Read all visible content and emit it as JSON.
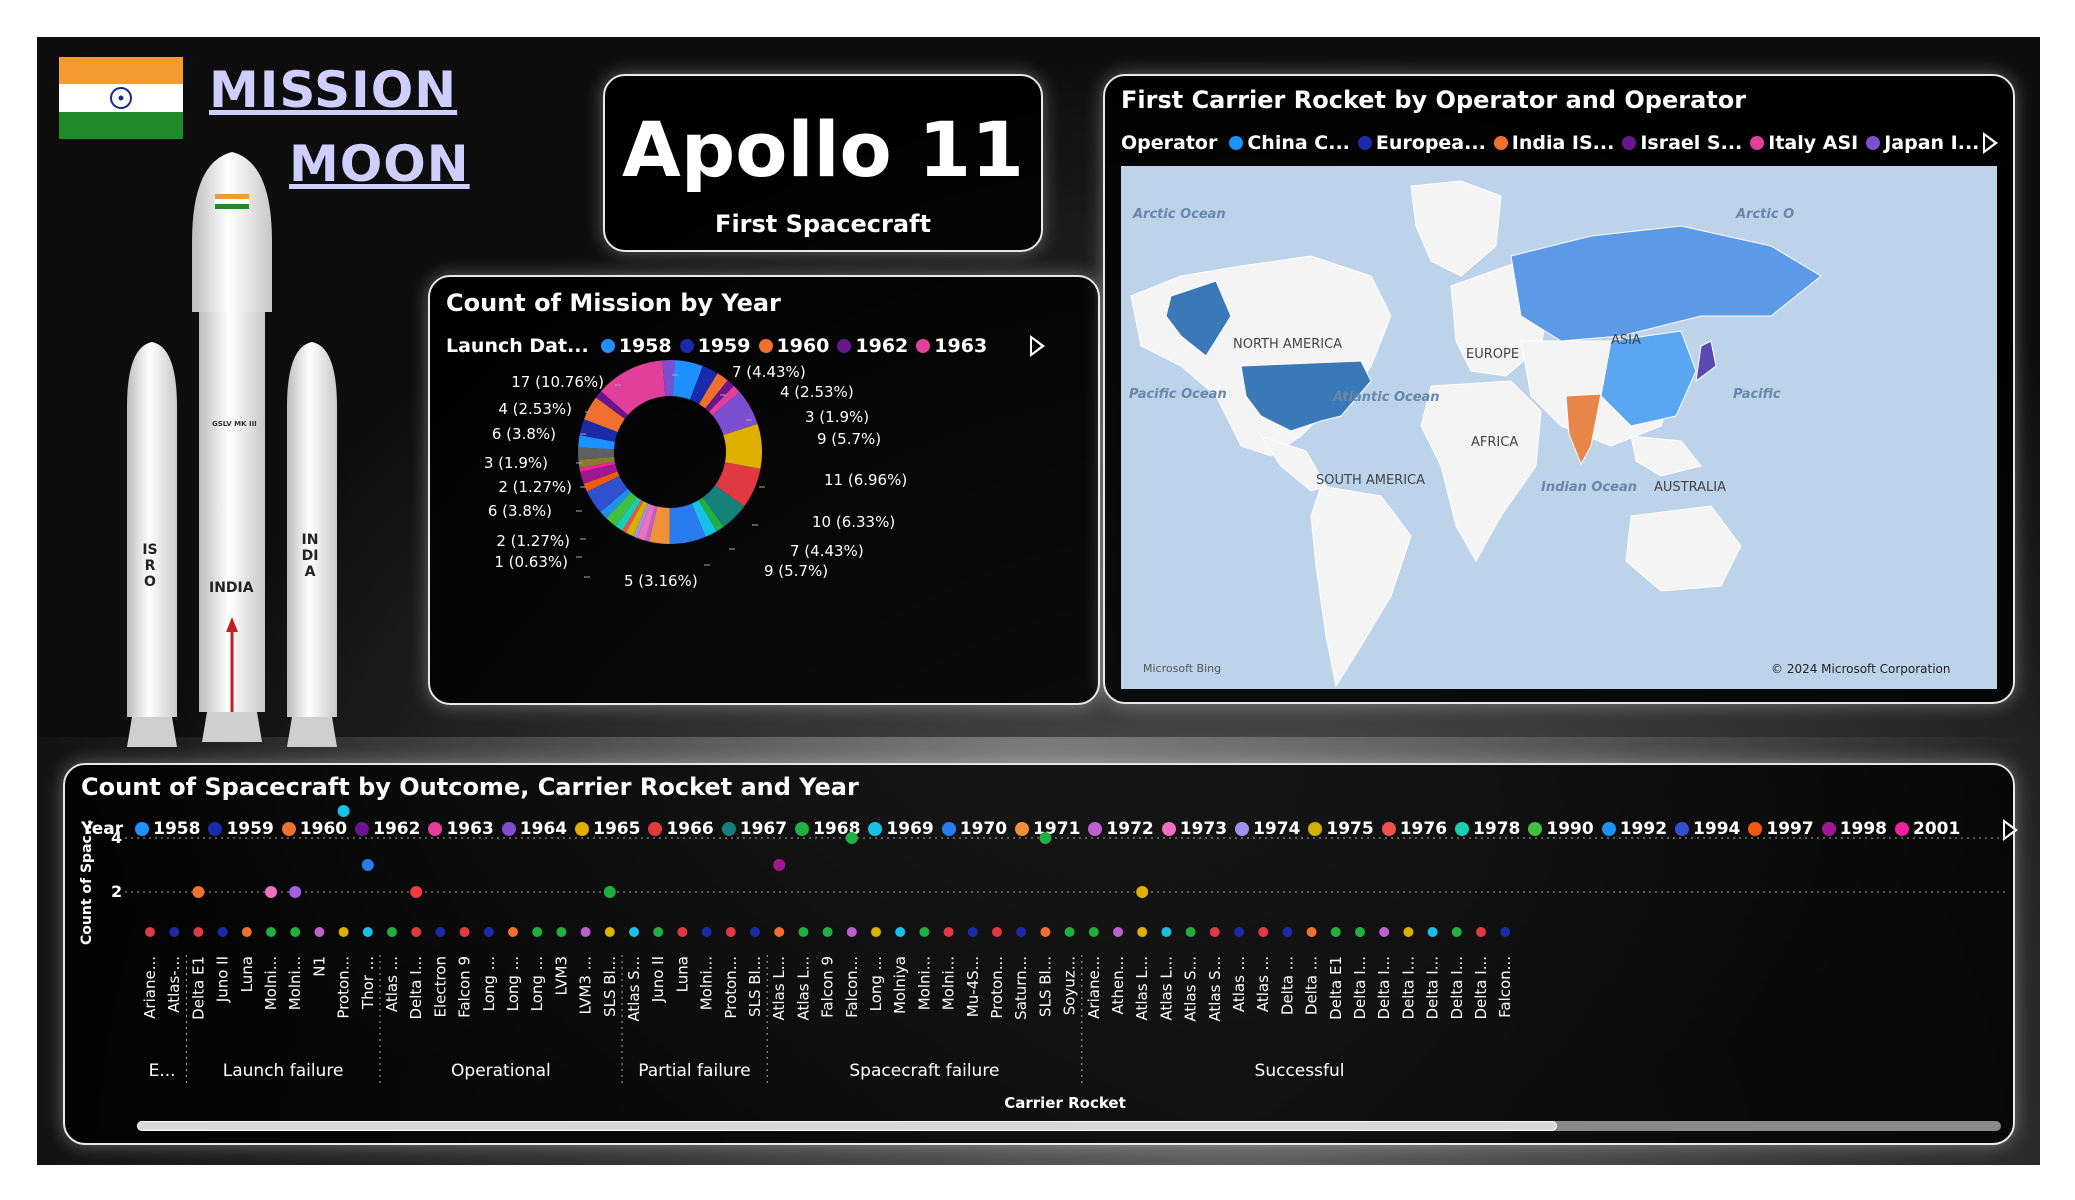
{
  "header": {
    "title_line1": "MISSION",
    "title_line2": "MOON"
  },
  "rocket": {
    "body_text": "INDIA",
    "booster_left": "ISRO",
    "booster_right": "INDIA",
    "band": "GSLV MK III"
  },
  "apollo_card": {
    "title": "Apollo 11",
    "subtitle": "First Spacecraft"
  },
  "donut_card": {
    "title": "Count of Mission by Year",
    "legend_title": "Launch Dat...",
    "legend": [
      {
        "label": "1958",
        "color": "#1e90ff"
      },
      {
        "label": "1959",
        "color": "#1a2aa8"
      },
      {
        "label": "1960",
        "color": "#f07030"
      },
      {
        "label": "1962",
        "color": "#6a1590"
      },
      {
        "label": "1963",
        "color": "#e0409a"
      }
    ],
    "labels": [
      "7 (4.43%)",
      "4 (2.53%)",
      "3 (1.9%)",
      "9 (5.7%)",
      "11 (6.96%)",
      "10 (6.33%)",
      "7 (4.43%)",
      "9 (5.7%)",
      "5 (3.16%)",
      "1 (0.63%)",
      "2 (1.27%)",
      "6 (3.8%)",
      "2 (1.27%)",
      "3 (1.9%)",
      "6 (3.8%)",
      "4 (2.53%)",
      "17 (10.76%)"
    ]
  },
  "map_card": {
    "title": "First Carrier Rocket by Operator and Operator",
    "legend_title": "Operator",
    "legend": [
      {
        "label": "China C...",
        "color": "#1e90ff"
      },
      {
        "label": "Europea...",
        "color": "#1a2aa8"
      },
      {
        "label": "India IS...",
        "color": "#f07030"
      },
      {
        "label": "Israel S...",
        "color": "#6a1590"
      },
      {
        "label": "Italy ASI",
        "color": "#e0409a"
      },
      {
        "label": "Japan I...",
        "color": "#7b4fd0"
      }
    ],
    "labels": {
      "arctic_left": "Arctic Ocean",
      "arctic_right": "Arctic O",
      "north_america": "NORTH AMERICA",
      "europe": "EUROPE",
      "asia": "ASIA",
      "pacific_left": "Pacific Ocean",
      "atlantic": "Atlantic Ocean",
      "pacific_right": "Pacific",
      "africa": "AFRICA",
      "south_america": "SOUTH AMERICA",
      "indian": "Indian Ocean",
      "australia": "AUSTRALIA",
      "bing": "Microsoft Bing",
      "copyright": "© 2024 Microsoft Corporation"
    },
    "colors": {
      "water": "#bcd3ea",
      "land": "#f4f4f4",
      "usa": "#3a78b8",
      "russia": "#5c9ae8",
      "china": "#5aa6f0",
      "india": "#e8864a",
      "japan": "#5a4ab0"
    }
  },
  "bottom_card": {
    "title": "Count of Spacecraft by Outcome, Carrier Rocket and Year",
    "legend_title": "Year",
    "legend": [
      {
        "label": "1958",
        "color": "#1e90ff"
      },
      {
        "label": "1959",
        "color": "#1a2aa8"
      },
      {
        "label": "1960",
        "color": "#f07030"
      },
      {
        "label": "1962",
        "color": "#6a1590"
      },
      {
        "label": "1963",
        "color": "#e0409a"
      },
      {
        "label": "1964",
        "color": "#7b4fd0"
      },
      {
        "label": "1965",
        "color": "#e0b000"
      },
      {
        "label": "1966",
        "color": "#e03a40"
      },
      {
        "label": "1967",
        "color": "#16807a"
      },
      {
        "label": "1968",
        "color": "#20b040"
      },
      {
        "label": "1969",
        "color": "#18c0e8"
      },
      {
        "label": "1970",
        "color": "#2a7af0"
      },
      {
        "label": "1971",
        "color": "#f0903a"
      },
      {
        "label": "1972",
        "color": "#c060d0"
      },
      {
        "label": "1973",
        "color": "#f070c0"
      },
      {
        "label": "1974",
        "color": "#a090f0"
      },
      {
        "label": "1975",
        "color": "#d0b000"
      },
      {
        "label": "1976",
        "color": "#f05050"
      },
      {
        "label": "1978",
        "color": "#18d0b0"
      },
      {
        "label": "1990",
        "color": "#40c040"
      },
      {
        "label": "1992",
        "color": "#2090f0"
      },
      {
        "label": "1994",
        "color": "#3050d0"
      },
      {
        "label": "1997",
        "color": "#f05a10"
      },
      {
        "label": "1998",
        "color": "#a01890"
      },
      {
        "label": "2001",
        "color": "#f020a0"
      }
    ],
    "y_axis_label": "Count of Spac...",
    "y_ticks": [
      "4",
      "2"
    ],
    "x_axis_label": "Carrier Rocket",
    "groups": [
      "E...",
      "Launch failure",
      "Operational",
      "Partial failure",
      "Spacecraft failure",
      "Successful"
    ],
    "rockets": [
      "Ariane...",
      "Atlas-...",
      "Delta E1",
      "Juno II",
      "Luna",
      "Molni...",
      "Molni...",
      "N1",
      "Proton...",
      "Thor ...",
      "Atlas ...",
      "Delta I...",
      "Electron",
      "Falcon 9",
      "Long ...",
      "Long ...",
      "Long ...",
      "LVM3",
      "LVM3 ...",
      "SLS Bl...",
      "Atlas S...",
      "Juno II",
      "Luna",
      "Molni...",
      "Proton...",
      "SLS Bl...",
      "Atlas L...",
      "Atlas L...",
      "Falcon 9",
      "Falcon...",
      "Long ...",
      "Molniya",
      "Molni...",
      "Molni...",
      "Mu-4S...",
      "Proton...",
      "Saturn...",
      "SLS Bl...",
      "Soyuz...",
      "Ariane...",
      "Athen...",
      "Atlas L...",
      "Atlas L...",
      "Atlas S...",
      "Atlas S...",
      "Atlas ...",
      "Atlas ...",
      "Delta ...",
      "Delta ...",
      "Delta E1",
      "Delta I...",
      "Delta I...",
      "Delta I...",
      "Delta I...",
      "Delta I...",
      "Delta I...",
      "Falcon..."
    ],
    "points": [
      {
        "rocket": 2,
        "value": 2,
        "color": "#f07030"
      },
      {
        "rocket": 5,
        "value": 2,
        "color": "#f070c0"
      },
      {
        "rocket": 6,
        "value": 2,
        "color": "#a060e0"
      },
      {
        "rocket": 8,
        "value": 5,
        "color": "#18c0e8"
      },
      {
        "rocket": 9,
        "value": 3,
        "color": "#2a7af0"
      },
      {
        "rocket": 11,
        "value": 2,
        "color": "#f03a40"
      },
      {
        "rocket": 19,
        "value": 2,
        "color": "#20b040"
      },
      {
        "rocket": 26,
        "value": 3,
        "color": "#a01890"
      },
      {
        "rocket": 29,
        "value": 4,
        "color": "#20b040"
      },
      {
        "rocket": 37,
        "value": 4,
        "color": "#20b040"
      },
      {
        "rocket": 41,
        "value": 2,
        "color": "#e0b000"
      }
    ]
  }
}
